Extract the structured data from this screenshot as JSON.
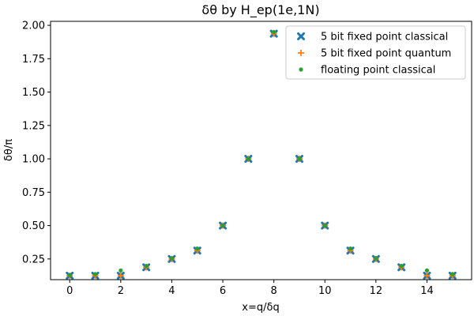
{
  "chart_data": {
    "type": "scatter",
    "title": "δθ by H_ep(1e,1N)",
    "xlabel": "x=q/δq",
    "ylabel": "δθ/π",
    "xlim": [
      -0.75,
      15.75
    ],
    "ylim": [
      0.095,
      2.03
    ],
    "xticks": [
      0,
      2,
      4,
      6,
      8,
      10,
      12,
      14
    ],
    "xtick_labels": [
      "0",
      "2",
      "4",
      "6",
      "8",
      "10",
      "12",
      "14"
    ],
    "yticks": [
      0.25,
      0.5,
      0.75,
      1.0,
      1.25,
      1.5,
      1.75,
      2.0
    ],
    "ytick_labels": [
      "0.25",
      "0.50",
      "0.75",
      "1.00",
      "1.25",
      "1.50",
      "1.75",
      "2.00"
    ],
    "grid": false,
    "legend_position": "top-right",
    "x": [
      0,
      1,
      2,
      3,
      4,
      5,
      6,
      7,
      8,
      9,
      10,
      11,
      12,
      13,
      14,
      15
    ],
    "series": [
      {
        "name": "5 bit fixed point classical",
        "marker": "x",
        "color": "#1f77b4",
        "values": [
          0.125,
          0.125,
          0.125,
          0.1875,
          0.25,
          0.3125,
          0.5,
          1.0,
          1.9375,
          1.0,
          0.5,
          0.3125,
          0.25,
          0.1875,
          0.125,
          0.125
        ]
      },
      {
        "name": "5 bit fixed point quantum",
        "marker": "plus",
        "color": "#ff7f0e",
        "values": [
          0.125,
          0.125,
          0.125,
          0.1875,
          0.25,
          0.3125,
          0.5,
          1.0,
          1.9375,
          1.0,
          0.5,
          0.3125,
          0.25,
          0.1875,
          0.125,
          0.125
        ]
      },
      {
        "name": "floating point classical",
        "marker": "dot",
        "color": "#2ca02c",
        "values": [
          0.128,
          0.137,
          0.164,
          0.198,
          0.256,
          0.328,
          0.5,
          1.0,
          1.95,
          1.0,
          0.5,
          0.328,
          0.256,
          0.198,
          0.164,
          0.137
        ]
      }
    ]
  }
}
